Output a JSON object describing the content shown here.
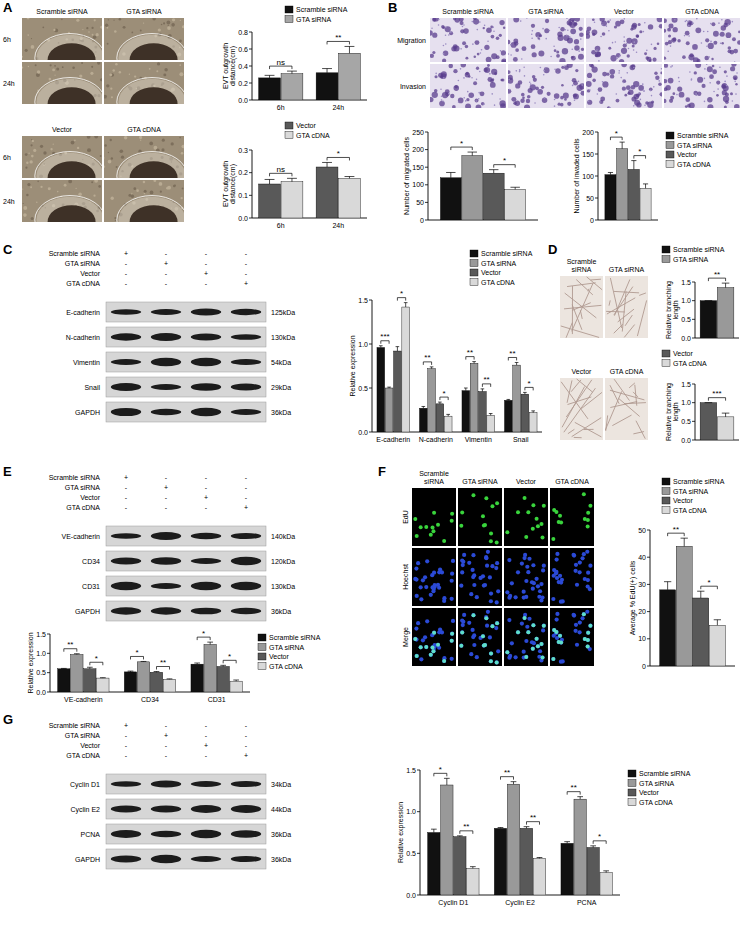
{
  "panel_labels": [
    "A",
    "B",
    "C",
    "D",
    "E",
    "F",
    "G"
  ],
  "images": [
    {
      "cols": [
        "Scramble siRNA",
        "GTA siRNA"
      ],
      "rows": [
        "6h",
        "24h"
      ]
    },
    {
      "cols": [
        "Vector",
        "GTA cDNA"
      ],
      "rows": [
        "6h",
        "24h"
      ]
    },
    {
      "cols": [
        "Scramble siRNA",
        "GTA siRNA",
        "Vector",
        "GTA cDNA"
      ],
      "rows": [
        "Migration",
        "Invasion"
      ]
    },
    {
      "cols": [
        "Scramble siRNA",
        "GTA siRNA"
      ]
    },
    {
      "cols": [
        "Vector",
        "GTA cDNA"
      ]
    },
    {
      "cols": [
        "Scramble siRNA",
        "GTA siRNA",
        "Vector",
        "GTA cDNA"
      ],
      "rows": [
        "EdU",
        "Hoechst",
        "Merge"
      ]
    }
  ],
  "blots": [
    {
      "conditions": [
        "Scramble siRNA",
        "GTA siRNA",
        "Vector",
        "GTA cDNA"
      ],
      "lanes": [
        [
          "+",
          "-",
          "-",
          "-"
        ],
        [
          "-",
          "+",
          "-",
          "-"
        ],
        [
          "-",
          "-",
          "+",
          "-"
        ],
        [
          "-",
          "-",
          "-",
          "+"
        ]
      ],
      "bands": [
        {
          "name": "E-cadherin",
          "size": "125kDa"
        },
        {
          "name": "N-cadherin",
          "size": "130kDa"
        },
        {
          "name": "Vimentin",
          "size": "54kDa"
        },
        {
          "name": "Snail",
          "size": "29kDa"
        },
        {
          "name": "GAPDH",
          "size": "36kDa"
        }
      ]
    },
    {
      "conditions": [
        "Scramble siRNA",
        "GTA siRNA",
        "Vector",
        "GTA cDNA"
      ],
      "lanes": [
        [
          "+",
          "-",
          "-",
          "-"
        ],
        [
          "-",
          "+",
          "-",
          "-"
        ],
        [
          "-",
          "-",
          "+",
          "-"
        ],
        [
          "-",
          "-",
          "-",
          "+"
        ]
      ],
      "bands": [
        {
          "name": "VE-cadherin",
          "size": "140kDa"
        },
        {
          "name": "CD34",
          "size": "120kDa"
        },
        {
          "name": "CD31",
          "size": "130kDa"
        },
        {
          "name": "GAPDH",
          "size": "36kDa"
        }
      ]
    },
    {
      "conditions": [
        "Scramble siRNA",
        "GTA siRNA",
        "Vector",
        "GTA cDNA"
      ],
      "lanes": [
        [
          "+",
          "-",
          "-",
          "-"
        ],
        [
          "-",
          "+",
          "-",
          "-"
        ],
        [
          "-",
          "-",
          "+",
          "-"
        ],
        [
          "-",
          "-",
          "-",
          "+"
        ]
      ],
      "bands": [
        {
          "name": "Cyclin D1",
          "size": "34kDa"
        },
        {
          "name": "Cyclin E2",
          "size": "44kDa"
        },
        {
          "name": "PCNA",
          "size": "36kDa"
        },
        {
          "name": "GAPDH",
          "size": "36kDa"
        }
      ]
    }
  ],
  "chart_data": [
    {
      "type": "bar",
      "ylabel": "EVT outgrowth distance(cm)",
      "categories": [
        "6h",
        "24h"
      ],
      "series": [
        {
          "name": "Scramble siRNA",
          "color": "#111111",
          "values": [
            0.26,
            0.32
          ],
          "error": [
            0.03,
            0.05
          ]
        },
        {
          "name": "GTA siRNA",
          "color": "#a6a6a6",
          "values": [
            0.31,
            0.55
          ],
          "error": [
            0.03,
            0.08
          ]
        }
      ],
      "ylim": [
        0,
        0.8
      ],
      "yticks": [
        {
          "value": 0,
          "label": "0.0"
        },
        0.2,
        0.4,
        0.6,
        0.8
      ],
      "legend": "top",
      "annotations": [
        {
          "text": "ns",
          "category": 0,
          "between": [
            0,
            1
          ]
        },
        {
          "text": "**",
          "category": 1,
          "between": [
            0,
            1
          ]
        }
      ]
    },
    {
      "type": "bar",
      "ylabel": "EVT outgrowth distance(cm)",
      "categories": [
        "6h",
        "24h"
      ],
      "series": [
        {
          "name": "Vector",
          "color": "#595959",
          "values": [
            0.15,
            0.225
          ],
          "error": [
            0.02,
            0.02
          ]
        },
        {
          "name": "GTA cDNA",
          "color": "#d9d9d9",
          "values": [
            0.16,
            0.175
          ],
          "error": [
            0.015,
            0.008
          ]
        }
      ],
      "ylim": [
        0,
        0.3
      ],
      "yticks": [
        {
          "value": 0,
          "label": "0.0"
        },
        0.1,
        0.2,
        0.3
      ],
      "legend": "top",
      "annotations": [
        {
          "text": "ns",
          "category": 0,
          "between": [
            0,
            1
          ]
        },
        {
          "text": "*",
          "category": 1,
          "between": [
            0,
            1
          ]
        }
      ]
    },
    {
      "type": "bar",
      "ylabel": "Number of migrated cells",
      "categories": [
        null
      ],
      "series": [
        {
          "color": "#111111",
          "values": [
            120
          ],
          "error": [
            15
          ]
        },
        {
          "color": "#999999",
          "values": [
            183
          ],
          "error": [
            10
          ]
        },
        {
          "color": "#595959",
          "values": [
            133
          ],
          "error": [
            10
          ]
        },
        {
          "color": "#d9d9d9",
          "values": [
            87
          ],
          "error": [
            6
          ]
        }
      ],
      "ylim": [
        0,
        250
      ],
      "yticks": [
        0,
        50,
        100,
        150,
        200,
        250
      ],
      "legend": false,
      "annotations": [
        {
          "text": "*",
          "category": 0,
          "between": [
            0,
            1
          ]
        },
        {
          "text": "*",
          "category": 0,
          "between": [
            2,
            3
          ]
        }
      ]
    },
    {
      "type": "bar",
      "ylabel": "Number of invaded cells",
      "categories": [
        null
      ],
      "series": [
        {
          "name": "Scramble siRNA",
          "color": "#111111",
          "values": [
            103
          ],
          "error": [
            5
          ]
        },
        {
          "name": "GTA siRNA",
          "color": "#999999",
          "values": [
            162
          ],
          "error": [
            15
          ]
        },
        {
          "name": "Vector",
          "color": "#595959",
          "values": [
            115
          ],
          "error": [
            20
          ]
        },
        {
          "name": "GTA cDNA",
          "color": "#d9d9d9",
          "values": [
            72
          ],
          "error": [
            10
          ]
        }
      ],
      "ylim": [
        0,
        200
      ],
      "yticks": [
        0,
        50,
        100,
        150,
        200
      ],
      "legend": "right",
      "annotations": [
        {
          "text": "*",
          "category": 0,
          "between": [
            0,
            1
          ]
        },
        {
          "text": "*",
          "category": 0,
          "between": [
            2,
            3
          ]
        }
      ]
    },
    {
      "type": "bar",
      "ylabel": "Relative expression",
      "categories": [
        "E-cadherin",
        "N-cadherin",
        "Vimentin",
        "Snail"
      ],
      "series": [
        {
          "name": "Scramble siRNA",
          "color": "#111111",
          "values": [
            0.96,
            0.27,
            0.47,
            0.36
          ],
          "error": [
            0.02,
            0.02,
            0.03,
            0.01
          ]
        },
        {
          "name": "GTA siRNA",
          "color": "#999999",
          "values": [
            0.5,
            0.72,
            0.78,
            0.76
          ],
          "error": [
            0.01,
            0.02,
            0.02,
            0.03
          ]
        },
        {
          "name": "Vector",
          "color": "#595959",
          "values": [
            0.92,
            0.32,
            0.46,
            0.43
          ],
          "error": [
            0.05,
            0.02,
            0.03,
            0.02
          ]
        },
        {
          "name": "GTA cDNA",
          "color": "#d9d9d9",
          "values": [
            1.42,
            0.18,
            0.19,
            0.22
          ],
          "error": [
            0.05,
            0.02,
            0.02,
            0.02
          ]
        }
      ],
      "ylim": [
        0,
        1.5
      ],
      "yticks": [
        {
          "value": 0,
          "label": "0.0"
        },
        0.5,
        {
          "value": 1,
          "label": "1.0"
        },
        1.5
      ],
      "legend": "top",
      "annotations": [
        {
          "text": "***",
          "category": 0,
          "between": [
            0,
            1
          ]
        },
        {
          "text": "*",
          "category": 0,
          "between": [
            2,
            3
          ]
        },
        {
          "text": "**",
          "category": 1,
          "between": [
            0,
            1
          ]
        },
        {
          "text": "*",
          "category": 1,
          "between": [
            2,
            3
          ]
        },
        {
          "text": "**",
          "category": 2,
          "between": [
            0,
            1
          ]
        },
        {
          "text": "**",
          "category": 2,
          "between": [
            2,
            3
          ]
        },
        {
          "text": "**",
          "category": 3,
          "between": [
            0,
            1
          ]
        },
        {
          "text": "*",
          "category": 3,
          "between": [
            2,
            3
          ]
        }
      ]
    },
    {
      "type": "bar",
      "ylabel": "Relative branching length",
      "categories": [
        null
      ],
      "series": [
        {
          "name": "Scramble siRNA",
          "color": "#111111",
          "values": [
            1
          ],
          "error": [
            0
          ]
        },
        {
          "name": "GTA siRNA",
          "color": "#999999",
          "values": [
            1.35
          ],
          "error": [
            0.12
          ]
        }
      ],
      "ylim": [
        0,
        1.5
      ],
      "yticks": [
        {
          "value": 0,
          "label": "0.0"
        },
        0.5,
        {
          "value": 1,
          "label": "1.0"
        },
        1.5
      ],
      "legend": "top",
      "annotations": [
        {
          "text": "**",
          "category": 0,
          "between": [
            0,
            1
          ]
        }
      ]
    },
    {
      "type": "bar",
      "ylabel": "Relative branching length",
      "categories": [
        null
      ],
      "series": [
        {
          "name": "Vector",
          "color": "#595959",
          "values": [
            1
          ],
          "error": [
            0
          ]
        },
        {
          "name": "GTA cDNA",
          "color": "#d9d9d9",
          "values": [
            0.62
          ],
          "error": [
            0.1
          ]
        }
      ],
      "ylim": [
        0,
        1.5
      ],
      "yticks": [
        {
          "value": 0,
          "label": "0.0"
        },
        0.5,
        {
          "value": 1,
          "label": "1.0"
        },
        1.5
      ],
      "legend": "top",
      "annotations": [
        {
          "text": "***",
          "category": 0,
          "between": [
            0,
            1
          ]
        }
      ]
    },
    {
      "type": "bar",
      "ylabel": "Relative expression",
      "categories": [
        "VE-cadherin",
        "CD34",
        "CD31"
      ],
      "series": [
        {
          "name": "Scramble siRNA",
          "color": "#111111",
          "values": [
            0.6,
            0.52,
            0.72
          ],
          "error": [
            0.01,
            0.02,
            0.03
          ]
        },
        {
          "name": "GTA siRNA",
          "color": "#999999",
          "values": [
            0.97,
            0.78,
            1.23
          ],
          "error": [
            0.02,
            0.01,
            0.06
          ]
        },
        {
          "name": "Vector",
          "color": "#595959",
          "values": [
            0.6,
            0.51,
            0.66
          ],
          "error": [
            0.04,
            0.02,
            0.03
          ]
        },
        {
          "name": "GTA cDNA",
          "color": "#d9d9d9",
          "values": [
            0.36,
            0.33,
            0.28
          ],
          "error": [
            0.01,
            0.01,
            0.03
          ]
        }
      ],
      "ylim": [
        0,
        1.5
      ],
      "yticks": [
        {
          "value": 0,
          "label": "0.0"
        },
        0.5,
        {
          "value": 1,
          "label": "1.0"
        },
        1.5
      ],
      "legend": "right",
      "annotations": [
        {
          "text": "**",
          "category": 0,
          "between": [
            0,
            1
          ]
        },
        {
          "text": "*",
          "category": 0,
          "between": [
            2,
            3
          ]
        },
        {
          "text": "*",
          "category": 1,
          "between": [
            0,
            1
          ]
        },
        {
          "text": "**",
          "category": 1,
          "between": [
            2,
            3
          ]
        },
        {
          "text": "*",
          "category": 2,
          "between": [
            0,
            1
          ]
        },
        {
          "text": "*",
          "category": 2,
          "between": [
            2,
            3
          ]
        }
      ]
    },
    {
      "type": "bar",
      "ylabel": "Average % EdU(+) cells",
      "categories": [
        null
      ],
      "series": [
        {
          "name": "Scramble siRNA",
          "color": "#111111",
          "values": [
            28
          ],
          "error": [
            3
          ]
        },
        {
          "name": "GTA siRNA",
          "color": "#999999",
          "values": [
            44
          ],
          "error": [
            3
          ]
        },
        {
          "name": "Vector",
          "color": "#595959",
          "values": [
            25
          ],
          "error": [
            2.5
          ]
        },
        {
          "name": "GTA cDNA",
          "color": "#d9d9d9",
          "values": [
            15
          ],
          "error": [
            2
          ]
        }
      ],
      "ylim": [
        0,
        50
      ],
      "yticks": [
        0,
        10,
        20,
        30,
        40,
        50
      ],
      "legend": "top",
      "annotations": [
        {
          "text": "**",
          "category": 0,
          "between": [
            0,
            1
          ]
        },
        {
          "text": "*",
          "category": 0,
          "between": [
            2,
            3
          ]
        }
      ]
    },
    {
      "type": "bar",
      "ylabel": "Relative expression",
      "categories": [
        "Cyclin D1",
        "Cyclin E2",
        "PCNA"
      ],
      "series": [
        {
          "name": "Scramble siRNA",
          "color": "#111111",
          "values": [
            0.75,
            0.8,
            0.62
          ],
          "error": [
            0.04,
            0.01,
            0.02
          ]
        },
        {
          "name": "GTA siRNA",
          "color": "#999999",
          "values": [
            1.32,
            1.33,
            1.15
          ],
          "error": [
            0.08,
            0.03,
            0.03
          ]
        },
        {
          "name": "Vector",
          "color": "#595959",
          "values": [
            0.7,
            0.8,
            0.57
          ],
          "error": [
            0.01,
            0.02,
            0.02
          ]
        },
        {
          "name": "GTA cDNA",
          "color": "#d9d9d9",
          "values": [
            0.32,
            0.44,
            0.27
          ],
          "error": [
            0.02,
            0.01,
            0.02
          ]
        }
      ],
      "ylim": [
        0,
        1.5
      ],
      "yticks": [
        {
          "value": 0,
          "label": "0.0"
        },
        0.5,
        {
          "value": 1,
          "label": "1.0"
        },
        1.5
      ],
      "legend": "right",
      "annotations": [
        {
          "text": "*",
          "category": 0,
          "between": [
            0,
            1
          ]
        },
        {
          "text": "**",
          "category": 0,
          "between": [
            2,
            3
          ]
        },
        {
          "text": "**",
          "category": 1,
          "between": [
            0,
            1
          ]
        },
        {
          "text": "**",
          "category": 1,
          "between": [
            2,
            3
          ]
        },
        {
          "text": "**",
          "category": 2,
          "between": [
            0,
            1
          ]
        },
        {
          "text": "*",
          "category": 2,
          "between": [
            2,
            3
          ]
        }
      ]
    }
  ]
}
